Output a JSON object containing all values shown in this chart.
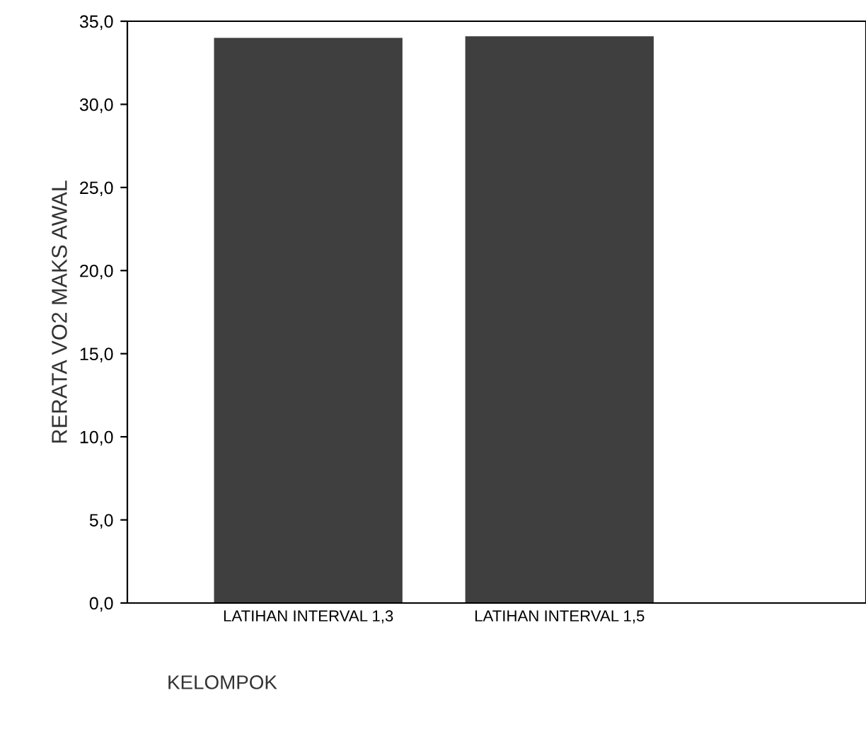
{
  "chart_data": {
    "type": "bar",
    "xlabel": "KELOMPOK",
    "ylabel": "RERATA VO2 MAKS AWAL",
    "categories": [
      "LATIHAN INTERVAL 1,3",
      "LATIHAN INTERVAL 1,5"
    ],
    "values": [
      34.0,
      34.1
    ],
    "color": "#3f3f3f",
    "ylim": [
      0,
      35
    ],
    "yticks": [
      {
        "value": 0,
        "label": "0,0"
      },
      {
        "value": 5,
        "label": "5,0"
      },
      {
        "value": 10,
        "label": "10,0"
      },
      {
        "value": 15,
        "label": "15,0"
      },
      {
        "value": 20,
        "label": "20,0"
      },
      {
        "value": 25,
        "label": "25,0"
      },
      {
        "value": 30,
        "label": "30,0"
      },
      {
        "value": 35,
        "label": "35,0"
      }
    ],
    "grid": false
  }
}
